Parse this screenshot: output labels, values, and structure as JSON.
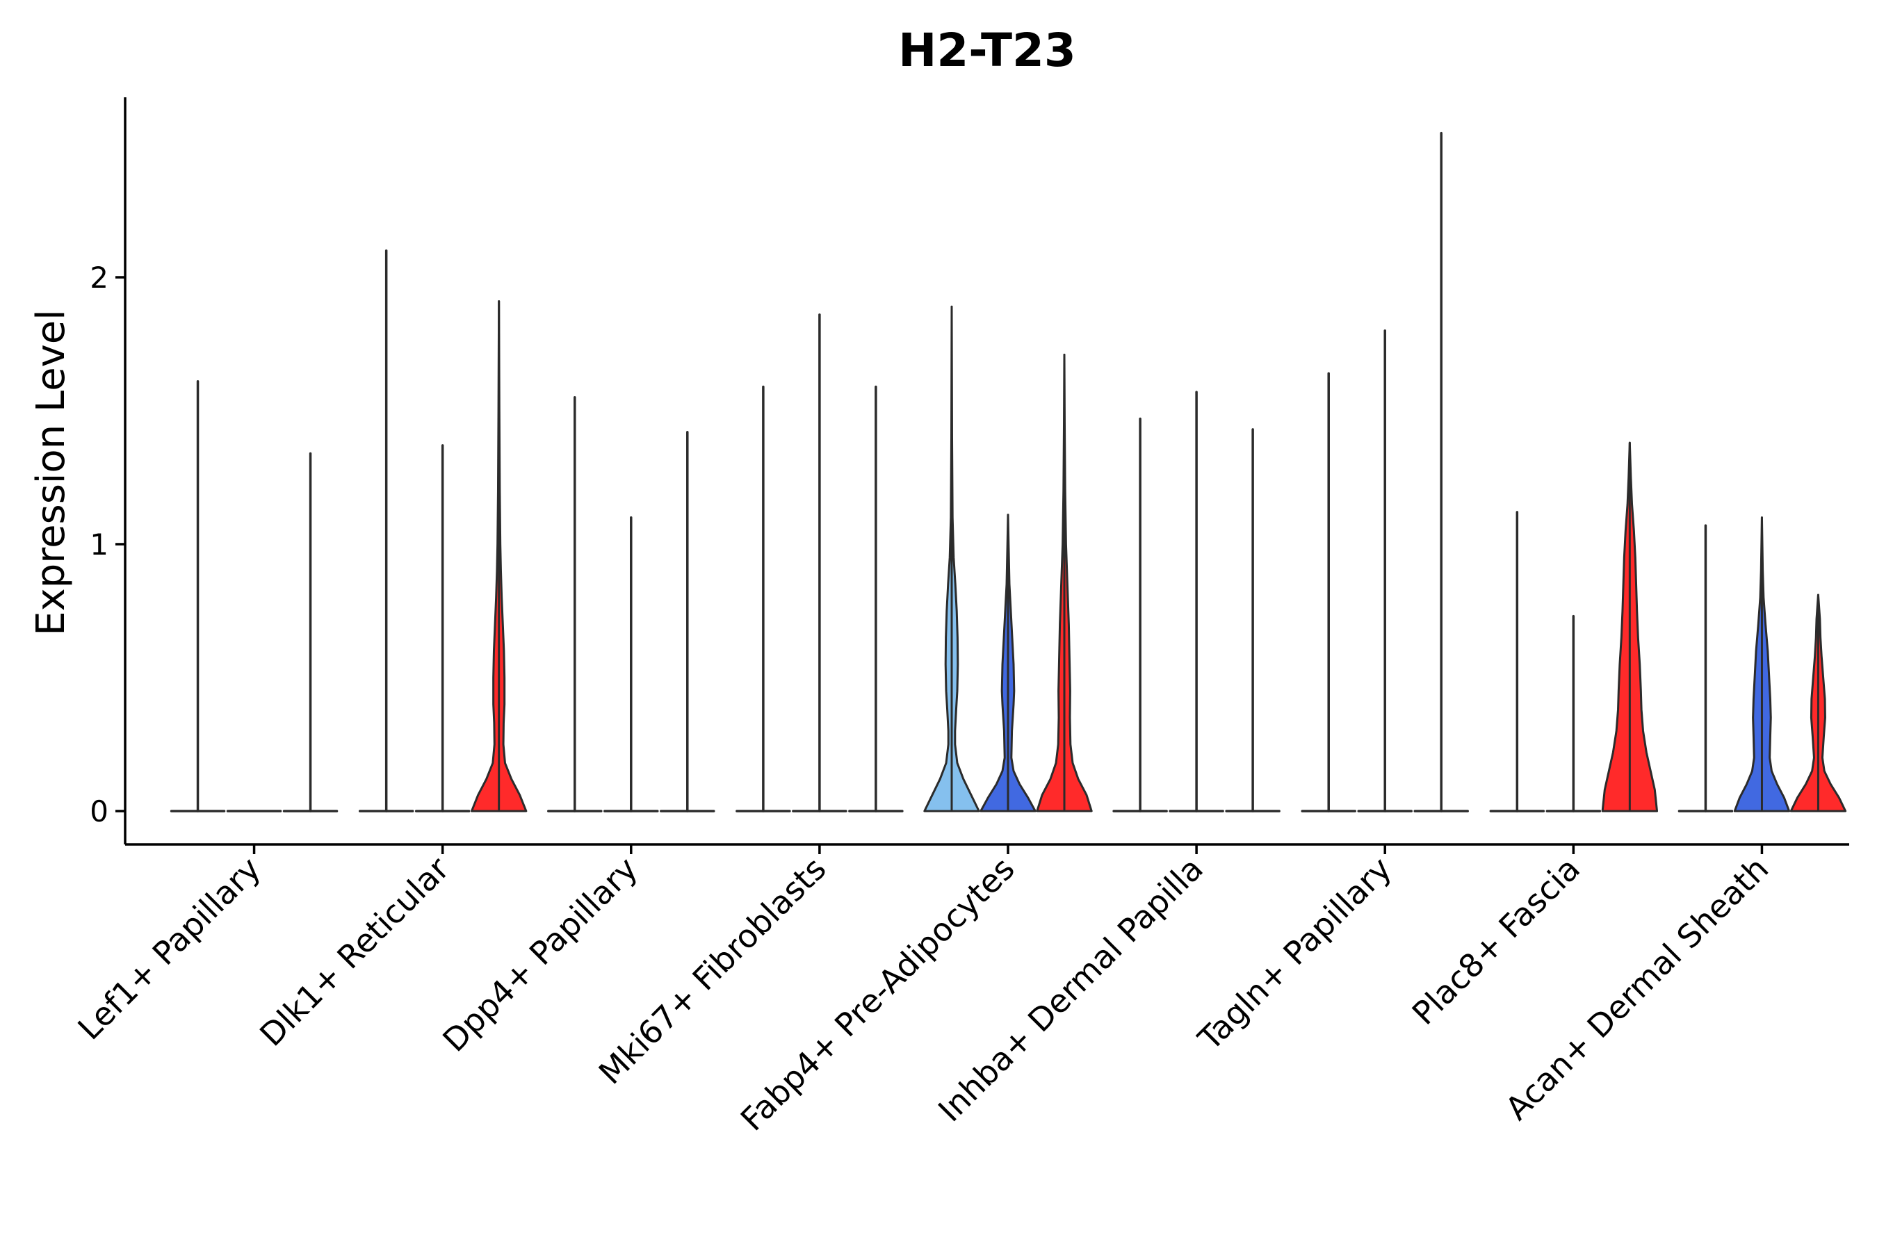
{
  "chart_data": {
    "type": "violin",
    "title": "H2-T23",
    "xlabel": "",
    "ylabel": "Expression Level",
    "ylim": [
      -0.13,
      2.68
    ],
    "yticks": [
      0,
      1,
      2
    ],
    "categories": [
      "Lef1+ Papillary",
      "Dlk1+ Reticular",
      "Dpp4+ Papillary",
      "Mki67+ Fibroblasts",
      "Fabp4+ Pre-Adipocytes",
      "Inhba+ Dermal Papilla",
      "Tagln+ Papillary",
      "Plac8+ Fascia",
      "Acan+ Dermal Sheath"
    ],
    "groups": [
      "group1",
      "group2",
      "group3"
    ],
    "colors": {
      "group1": "#85C0EE",
      "group2": "#4169E1",
      "group3": "#FF2A2A",
      "stroke": "#2b2b2b"
    },
    "series": [
      {
        "category": "Lef1+ Papillary",
        "violins": [
          {
            "group": "group1",
            "max": 1.61,
            "profile": [
              [
                0,
                0.02
              ],
              [
                1.61,
                0
              ]
            ]
          },
          {
            "group": "group2",
            "max": 0.0,
            "profile": [
              [
                0,
                0.02
              ],
              [
                0,
                0
              ]
            ]
          },
          {
            "group": "group3",
            "max": 1.34,
            "profile": [
              [
                0,
                0.02
              ],
              [
                1.34,
                0
              ]
            ]
          }
        ]
      },
      {
        "category": "Dlk1+ Reticular",
        "violins": [
          {
            "group": "group1",
            "max": 2.1,
            "profile": [
              [
                0,
                0.02
              ],
              [
                2.1,
                0
              ]
            ]
          },
          {
            "group": "group2",
            "max": 1.37,
            "profile": [
              [
                0,
                0.02
              ],
              [
                1.37,
                0
              ]
            ]
          },
          {
            "group": "group3",
            "max": 1.91,
            "profile": [
              [
                0,
                0.98
              ],
              [
                0.06,
                0.75
              ],
              [
                0.12,
                0.45
              ],
              [
                0.18,
                0.22
              ],
              [
                0.25,
                0.16
              ],
              [
                0.33,
                0.17
              ],
              [
                0.4,
                0.2
              ],
              [
                0.5,
                0.2
              ],
              [
                0.6,
                0.18
              ],
              [
                0.7,
                0.14
              ],
              [
                0.8,
                0.1
              ],
              [
                0.9,
                0.07
              ],
              [
                1.0,
                0.05
              ],
              [
                1.2,
                0.03
              ],
              [
                1.5,
                0.015
              ],
              [
                1.91,
                0
              ]
            ]
          }
        ]
      },
      {
        "category": "Dpp4+ Papillary",
        "violins": [
          {
            "group": "group1",
            "max": 1.55,
            "profile": [
              [
                0,
                0.02
              ],
              [
                1.55,
                0
              ]
            ]
          },
          {
            "group": "group2",
            "max": 1.1,
            "profile": [
              [
                0,
                0.02
              ],
              [
                1.1,
                0
              ]
            ]
          },
          {
            "group": "group3",
            "max": 1.42,
            "profile": [
              [
                0,
                0.02
              ],
              [
                1.42,
                0
              ]
            ]
          }
        ]
      },
      {
        "category": "Mki67+ Fibroblasts",
        "violins": [
          {
            "group": "group1",
            "max": 1.59,
            "profile": [
              [
                0,
                0.02
              ],
              [
                1.59,
                0
              ]
            ]
          },
          {
            "group": "group2",
            "max": 1.86,
            "profile": [
              [
                0,
                0.02
              ],
              [
                1.86,
                0
              ]
            ]
          },
          {
            "group": "group3",
            "max": 1.59,
            "profile": [
              [
                0,
                0.02
              ],
              [
                1.59,
                0
              ]
            ]
          }
        ]
      },
      {
        "category": "Fabp4+ Pre-Adipocytes",
        "violins": [
          {
            "group": "group1",
            "max": 1.89,
            "profile": [
              [
                0,
                0.98
              ],
              [
                0.06,
                0.7
              ],
              [
                0.12,
                0.42
              ],
              [
                0.18,
                0.2
              ],
              [
                0.25,
                0.12
              ],
              [
                0.3,
                0.12
              ],
              [
                0.38,
                0.16
              ],
              [
                0.45,
                0.2
              ],
              [
                0.55,
                0.22
              ],
              [
                0.65,
                0.21
              ],
              [
                0.75,
                0.18
              ],
              [
                0.85,
                0.13
              ],
              [
                0.95,
                0.07
              ],
              [
                1.1,
                0.03
              ],
              [
                1.4,
                0.012
              ],
              [
                1.89,
                0
              ]
            ]
          },
          {
            "group": "group2",
            "max": 1.11,
            "profile": [
              [
                0,
                0.98
              ],
              [
                0.05,
                0.72
              ],
              [
                0.1,
                0.42
              ],
              [
                0.15,
                0.2
              ],
              [
                0.2,
                0.12
              ],
              [
                0.3,
                0.14
              ],
              [
                0.4,
                0.2
              ],
              [
                0.45,
                0.22
              ],
              [
                0.55,
                0.2
              ],
              [
                0.65,
                0.15
              ],
              [
                0.75,
                0.1
              ],
              [
                0.85,
                0.05
              ],
              [
                1.0,
                0.02
              ],
              [
                1.11,
                0
              ]
            ]
          },
          {
            "group": "group3",
            "max": 1.71,
            "profile": [
              [
                0,
                0.98
              ],
              [
                0.06,
                0.8
              ],
              [
                0.12,
                0.5
              ],
              [
                0.18,
                0.3
              ],
              [
                0.25,
                0.22
              ],
              [
                0.35,
                0.2
              ],
              [
                0.45,
                0.21
              ],
              [
                0.55,
                0.19
              ],
              [
                0.7,
                0.16
              ],
              [
                0.85,
                0.11
              ],
              [
                1.0,
                0.06
              ],
              [
                1.2,
                0.03
              ],
              [
                1.45,
                0.012
              ],
              [
                1.71,
                0
              ]
            ]
          }
        ]
      },
      {
        "category": "Inhba+ Dermal Papilla",
        "violins": [
          {
            "group": "group1",
            "max": 1.47,
            "profile": [
              [
                0,
                0.02
              ],
              [
                1.47,
                0
              ]
            ]
          },
          {
            "group": "group2",
            "max": 1.57,
            "profile": [
              [
                0,
                0.02
              ],
              [
                1.57,
                0
              ]
            ]
          },
          {
            "group": "group3",
            "max": 1.43,
            "profile": [
              [
                0,
                0.02
              ],
              [
                1.43,
                0
              ]
            ]
          }
        ]
      },
      {
        "category": "Tagln+ Papillary",
        "violins": [
          {
            "group": "group1",
            "max": 1.64,
            "profile": [
              [
                0,
                0.02
              ],
              [
                1.64,
                0
              ]
            ]
          },
          {
            "group": "group2",
            "max": 1.8,
            "profile": [
              [
                0,
                0.02
              ],
              [
                1.8,
                0
              ]
            ]
          },
          {
            "group": "group3",
            "max": 2.54,
            "profile": [
              [
                0,
                0.02
              ],
              [
                2.54,
                0
              ]
            ]
          }
        ]
      },
      {
        "category": "Plac8+ Fascia",
        "violins": [
          {
            "group": "group1",
            "max": 1.12,
            "profile": [
              [
                0,
                0.02
              ],
              [
                1.12,
                0
              ]
            ]
          },
          {
            "group": "group2",
            "max": 0.73,
            "profile": [
              [
                0,
                0.02
              ],
              [
                0.73,
                0
              ]
            ]
          },
          {
            "group": "group3",
            "max": 1.38,
            "profile": [
              [
                0,
                0.98
              ],
              [
                0.08,
                0.9
              ],
              [
                0.15,
                0.75
              ],
              [
                0.22,
                0.6
              ],
              [
                0.3,
                0.48
              ],
              [
                0.38,
                0.42
              ],
              [
                0.45,
                0.4
              ],
              [
                0.55,
                0.36
              ],
              [
                0.65,
                0.3
              ],
              [
                0.75,
                0.26
              ],
              [
                0.85,
                0.23
              ],
              [
                0.95,
                0.2
              ],
              [
                1.05,
                0.15
              ],
              [
                1.15,
                0.08
              ],
              [
                1.25,
                0.04
              ],
              [
                1.38,
                0
              ]
            ]
          }
        ]
      },
      {
        "category": "Acan+ Dermal Sheath",
        "violins": [
          {
            "group": "group1",
            "max": 1.07,
            "profile": [
              [
                0,
                0.02
              ],
              [
                1.07,
                0
              ]
            ]
          },
          {
            "group": "group2",
            "max": 1.1,
            "profile": [
              [
                0,
                0.98
              ],
              [
                0.05,
                0.8
              ],
              [
                0.1,
                0.55
              ],
              [
                0.15,
                0.35
              ],
              [
                0.2,
                0.28
              ],
              [
                0.28,
                0.3
              ],
              [
                0.35,
                0.32
              ],
              [
                0.42,
                0.3
              ],
              [
                0.5,
                0.26
              ],
              [
                0.6,
                0.21
              ],
              [
                0.7,
                0.13
              ],
              [
                0.8,
                0.06
              ],
              [
                0.9,
                0.03
              ],
              [
                1.1,
                0
              ]
            ]
          },
          {
            "group": "group3",
            "max": 0.81,
            "profile": [
              [
                0,
                0.98
              ],
              [
                0.05,
                0.75
              ],
              [
                0.1,
                0.45
              ],
              [
                0.15,
                0.22
              ],
              [
                0.2,
                0.15
              ],
              [
                0.28,
                0.2
              ],
              [
                0.35,
                0.25
              ],
              [
                0.42,
                0.24
              ],
              [
                0.5,
                0.18
              ],
              [
                0.58,
                0.12
              ],
              [
                0.65,
                0.08
              ],
              [
                0.72,
                0.06
              ],
              [
                0.81,
                0
              ]
            ]
          }
        ]
      }
    ]
  }
}
